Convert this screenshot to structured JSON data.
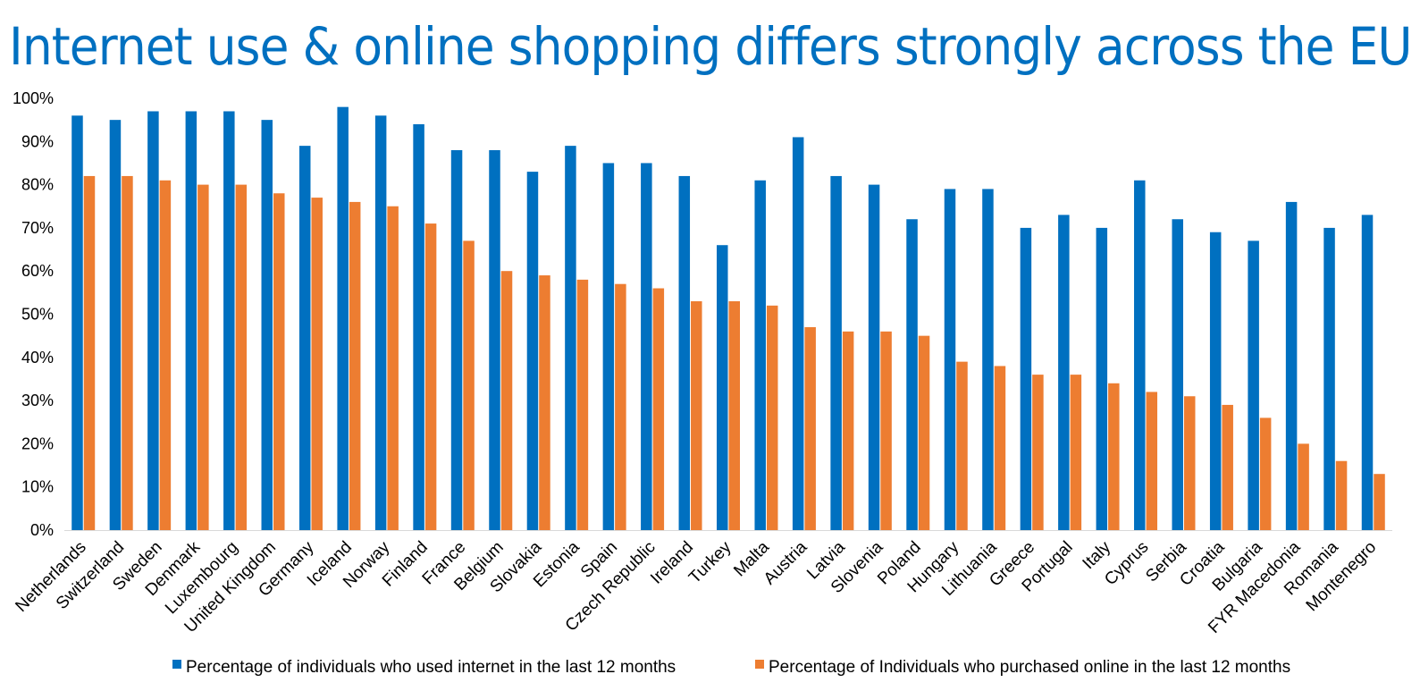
{
  "chart_data": {
    "type": "bar",
    "title": "Internet use & online shopping differs strongly across the EU",
    "xlabel": "",
    "ylabel": "",
    "ylim": [
      0,
      100
    ],
    "yticks": [
      "0%",
      "10%",
      "20%",
      "30%",
      "40%",
      "50%",
      "60%",
      "70%",
      "80%",
      "90%",
      "100%"
    ],
    "grid": false,
    "legend_position": "bottom",
    "categories": [
      "Netherlands",
      "Switzerland",
      "Sweden",
      "Denmark",
      "Luxembourg",
      "United Kingdom",
      "Germany",
      "Iceland",
      "Norway",
      "Finland",
      "France",
      "Belgium",
      "Slovakia",
      "Estonia",
      "Spain",
      "Czech Republic",
      "Ireland",
      "Turkey",
      "Malta",
      "Austria",
      "Latvia",
      "Slovenia",
      "Poland",
      "Hungary",
      "Lithuania",
      "Greece",
      "Portugal",
      "Italy",
      "Cyprus",
      "Serbia",
      "Croatia",
      "Bulgaria",
      "FYR Macedonia",
      "Romania",
      "Montenegro"
    ],
    "series": [
      {
        "name": "Percentage of individuals who used internet in the last 12 months",
        "color": "#0070c0",
        "values": [
          96,
          95,
          97,
          97,
          97,
          95,
          89,
          98,
          96,
          94,
          88,
          88,
          83,
          89,
          85,
          85,
          82,
          66,
          81,
          91,
          82,
          80,
          72,
          79,
          79,
          70,
          73,
          70,
          81,
          72,
          69,
          67,
          76,
          70,
          73
        ]
      },
      {
        "name": "Percentage of Individuals who purchased online in the last 12 months",
        "color": "#ed7d31",
        "values": [
          82,
          82,
          81,
          80,
          80,
          78,
          77,
          76,
          75,
          71,
          67,
          60,
          59,
          58,
          57,
          56,
          53,
          53,
          52,
          47,
          46,
          46,
          45,
          39,
          38,
          36,
          36,
          34,
          32,
          31,
          29,
          26,
          20,
          16,
          13
        ]
      }
    ]
  }
}
